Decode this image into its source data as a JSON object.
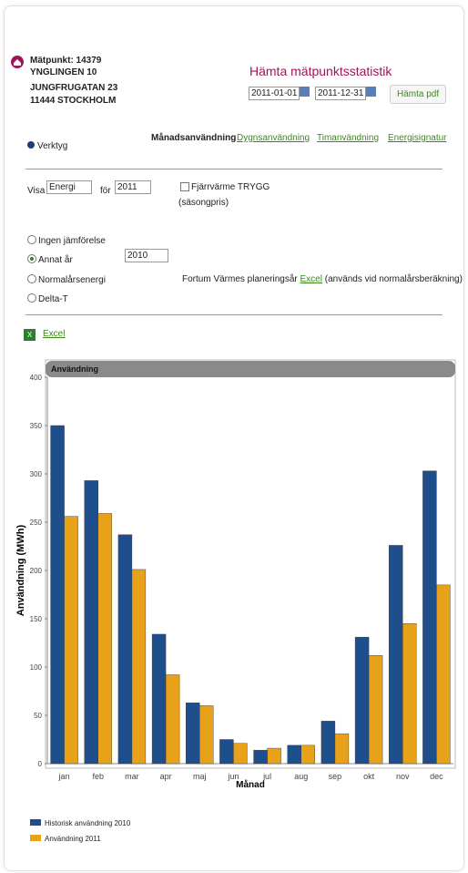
{
  "header": {
    "meter": "Mätpunkt: 14379",
    "address": [
      "YNGLINGEN 10",
      "JUNGFRUGATAN 23",
      "11444 STOCKHOLM"
    ],
    "title": "Hämta mätpunktsstatistik",
    "date_from": "2011-01-01",
    "date_to": "2011-12-31",
    "pdf_button": "Hämta pdf"
  },
  "tools": "Verktyg",
  "tabs": [
    "Månadsanvändning",
    "Dygnsanvändning",
    "Timanvändning",
    "Energisignatur"
  ],
  "filters": {
    "visa_label": "Visa",
    "visa_value": "Energi",
    "for_label": "för",
    "year": "2011",
    "checkbox_label": "Fjärrvärme TRYGG",
    "checkbox_note": "(säsongpris)"
  },
  "comparison": {
    "options": [
      "Ingen jämförelse",
      "Annat år",
      "Normalårsenergi",
      "Delta-T"
    ],
    "year": "2010",
    "note": "Fortum Värmes planeringsår",
    "note_link": "Excel",
    "note_tail": "(används vid normalårsberäkning)"
  },
  "excel_link": "Excel",
  "chart_data": {
    "type": "bar",
    "title": "Användning",
    "y_label": "Användning (MWh)",
    "x_label": "Månad",
    "categories": [
      "jan",
      "feb",
      "mar",
      "apr",
      "maj",
      "jun",
      "jul",
      "aug",
      "sep",
      "okt",
      "nov",
      "dec"
    ],
    "series": [
      {
        "name": "Historisk användning 2010",
        "color": "#1f4e8c",
        "values": [
          350,
          293,
          237,
          134,
          63,
          25,
          14,
          19,
          44,
          131,
          226,
          303
        ]
      },
      {
        "name": "Användning 2011",
        "color": "#e8a21a",
        "values": [
          256,
          259,
          201,
          92,
          60,
          21,
          16,
          19,
          31,
          112,
          145,
          185
        ]
      }
    ],
    "ylim": [
      0,
      400
    ],
    "yticks": [
      0,
      50,
      100,
      150,
      200,
      250,
      300,
      350,
      400
    ],
    "grid": false
  }
}
